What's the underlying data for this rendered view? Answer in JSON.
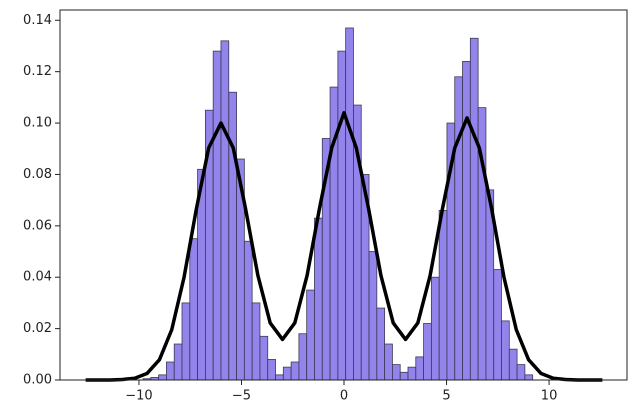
{
  "chart_data": {
    "type": "histogram",
    "bins": [
      -9.8,
      -9.42,
      -9.04,
      -8.66,
      -8.28,
      -7.9,
      -7.52,
      -7.14,
      -6.76,
      -6.38,
      -6.0,
      -5.62,
      -5.24,
      -4.86,
      -4.48,
      -4.1,
      -3.72,
      -3.34,
      -2.96,
      -2.58,
      -2.2,
      -1.82,
      -1.44,
      -1.06,
      -0.68,
      -0.3,
      0.08,
      0.46,
      0.84,
      1.22,
      1.6,
      1.98,
      2.36,
      2.74,
      3.12,
      3.5,
      3.88,
      4.26,
      4.64,
      5.02,
      5.4,
      5.78,
      6.16,
      6.54,
      6.92,
      7.3,
      7.68,
      8.06,
      8.44,
      8.82,
      9.2
    ],
    "values": [
      0.0005,
      0.001,
      0.002,
      0.007,
      0.014,
      0.03,
      0.055,
      0.082,
      0.105,
      0.128,
      0.132,
      0.112,
      0.086,
      0.054,
      0.03,
      0.017,
      0.008,
      0.002,
      0.005,
      0.007,
      0.018,
      0.035,
      0.063,
      0.094,
      0.114,
      0.128,
      0.137,
      0.107,
      0.08,
      0.05,
      0.028,
      0.014,
      0.006,
      0.003,
      0.005,
      0.009,
      0.022,
      0.04,
      0.066,
      0.1,
      0.118,
      0.124,
      0.133,
      0.106,
      0.074,
      0.043,
      0.023,
      0.012,
      0.006,
      0.002
    ],
    "color": "#7f6fe8",
    "edge_color": "#3b3b55",
    "overlay": {
      "type": "line",
      "color": "#000000",
      "x": [
        -12.6,
        -12.0,
        -11.4,
        -10.8,
        -10.2,
        -9.6,
        -9.0,
        -8.4,
        -7.8,
        -7.2,
        -6.6,
        -6.0,
        -5.4,
        -4.8,
        -4.2,
        -3.6,
        -3.0,
        -2.4,
        -1.8,
        -1.2,
        -0.6,
        0.0,
        0.6,
        1.2,
        1.8,
        2.4,
        3.0,
        3.6,
        4.2,
        4.8,
        5.4,
        6.0,
        6.6,
        7.2,
        7.8,
        8.4,
        9.0,
        9.6,
        10.2,
        10.8,
        11.4,
        12.0,
        12.6
      ],
      "values": [
        0.0,
        0.0,
        0.0,
        0.0002,
        0.0007,
        0.0026,
        0.0079,
        0.0196,
        0.04,
        0.0666,
        0.0903,
        0.1,
        0.0903,
        0.0666,
        0.0407,
        0.0222,
        0.0158,
        0.0222,
        0.0407,
        0.0666,
        0.0903,
        0.104,
        0.0903,
        0.0666,
        0.0407,
        0.0222,
        0.0158,
        0.0222,
        0.0407,
        0.0666,
        0.0903,
        0.102,
        0.0903,
        0.0666,
        0.04,
        0.0196,
        0.0079,
        0.0026,
        0.0007,
        0.0002,
        0.0,
        0.0,
        0.0
      ]
    },
    "xlim": [
      -13.85,
      13.8
    ],
    "ylim": [
      0,
      0.144
    ],
    "xticks": [
      {
        "value": -10,
        "label": "−10"
      },
      {
        "value": -5,
        "label": "−5"
      },
      0,
      5,
      10
    ],
    "yticks": [
      {
        "value": 0,
        "label": "0.00"
      },
      {
        "value": 0.02,
        "label": "0.02"
      },
      {
        "value": 0.04,
        "label": "0.04"
      },
      {
        "value": 0.06,
        "label": "0.06"
      },
      {
        "value": 0.08,
        "label": "0.08"
      },
      {
        "value": 0.1,
        "label": "0.10"
      },
      {
        "value": 0.12,
        "label": "0.12"
      },
      {
        "value": 0.14,
        "label": "0.14"
      }
    ]
  }
}
